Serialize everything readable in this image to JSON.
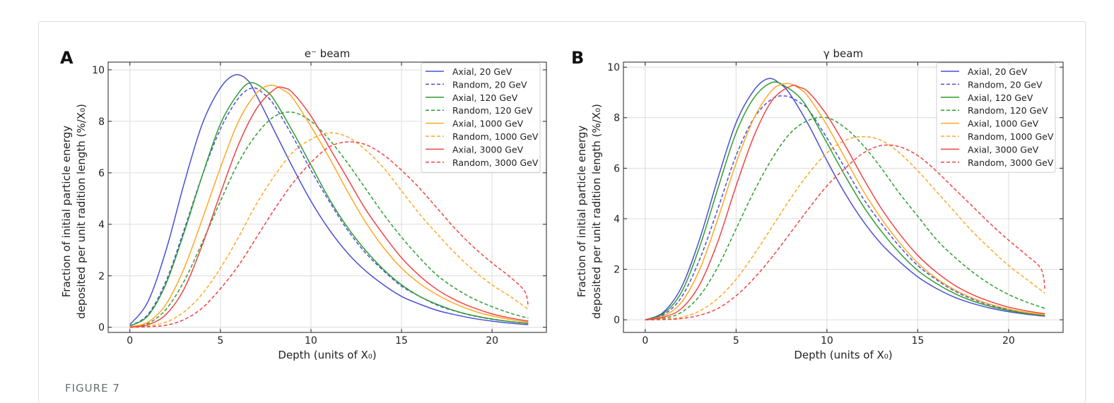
{
  "figure_label": "FIGURE 7",
  "series_names": [
    "Axial, 20 GeV",
    "Random, 20 GeV",
    "Axial, 120 GeV",
    "Random, 120 GeV",
    "Axial, 1000 GeV",
    "Random, 1000 GeV",
    "Axial, 3000 GeV",
    "Random, 3000 GeV"
  ],
  "colors": {
    "20 GeV": "#4a4fd4",
    "120 GeV": "#2e9e2e",
    "1000 GeV": "#ffa726",
    "3000 GeV": "#ef4444"
  },
  "chart_data": [
    {
      "type": "line",
      "panel_letter": "A",
      "title": "e⁻ beam",
      "xlabel": "Depth (units of X₀)",
      "ylabel_line1": "Fraction of initial particle energy",
      "ylabel_line2": "deposited per unit radition length (%/X₀)",
      "xlim": [
        -1.2,
        23.0
      ],
      "ylim": [
        -0.2,
        10.3
      ],
      "xticks": [
        0,
        5,
        10,
        15,
        20
      ],
      "yticks": [
        0,
        2,
        4,
        6,
        8,
        10
      ],
      "grid": true,
      "legend": "top-right",
      "series": [
        {
          "name": "Axial, 20 GeV",
          "color": "#4a4fd4",
          "dash": "solid",
          "x": [
            0,
            1,
            2,
            3,
            4,
            5,
            5.8,
            6.5,
            7,
            8,
            9,
            10,
            11,
            12,
            13,
            14,
            15,
            16,
            17,
            18,
            19,
            20,
            21,
            22
          ],
          "y": [
            0.1,
            1.0,
            3.0,
            5.6,
            7.9,
            9.3,
            9.8,
            9.6,
            9.0,
            7.6,
            6.2,
            4.9,
            3.8,
            2.9,
            2.2,
            1.65,
            1.2,
            0.9,
            0.65,
            0.48,
            0.34,
            0.24,
            0.16,
            0.1
          ]
        },
        {
          "name": "Random, 20 GeV",
          "color": "#4a4fd4",
          "dash": "dashed",
          "x": [
            0,
            1,
            2,
            3,
            4,
            5,
            6,
            6.8,
            7.5,
            8,
            9,
            10,
            11,
            12,
            13,
            14,
            15,
            16,
            17,
            18,
            19,
            20,
            21,
            22
          ],
          "y": [
            0.05,
            0.5,
            1.8,
            3.8,
            5.9,
            7.7,
            8.9,
            9.3,
            9.0,
            8.6,
            7.4,
            6.1,
            4.9,
            3.8,
            2.9,
            2.2,
            1.6,
            1.2,
            0.85,
            0.62,
            0.44,
            0.31,
            0.22,
            0.15
          ]
        },
        {
          "name": "Axial, 120 GeV",
          "color": "#2e9e2e",
          "dash": "solid",
          "x": [
            0,
            1,
            2,
            3,
            4,
            5,
            6,
            6.7,
            7.5,
            8,
            9,
            10,
            11,
            12,
            13,
            14,
            15,
            16,
            17,
            18,
            19,
            20,
            21,
            22
          ],
          "y": [
            0.05,
            0.45,
            1.7,
            3.7,
            5.9,
            7.9,
            9.1,
            9.5,
            9.2,
            8.8,
            7.6,
            6.3,
            5.0,
            3.9,
            3.0,
            2.25,
            1.65,
            1.2,
            0.88,
            0.63,
            0.45,
            0.32,
            0.22,
            0.15
          ]
        },
        {
          "name": "Random, 120 GeV",
          "color": "#2e9e2e",
          "dash": "dashed",
          "x": [
            0,
            1,
            2,
            3,
            4,
            5,
            6,
            7,
            8,
            9,
            10,
            11,
            12,
            13,
            14,
            15,
            16,
            17,
            18,
            19,
            20,
            21,
            22
          ],
          "y": [
            0.02,
            0.15,
            0.7,
            1.8,
            3.3,
            4.9,
            6.4,
            7.5,
            8.2,
            8.35,
            8.0,
            7.3,
            6.4,
            5.4,
            4.4,
            3.5,
            2.7,
            2.0,
            1.5,
            1.1,
            0.8,
            0.55,
            0.35
          ]
        },
        {
          "name": "Axial, 1000 GeV",
          "color": "#ffa726",
          "dash": "solid",
          "x": [
            0,
            1,
            2,
            3,
            4,
            5,
            6,
            7,
            7.8,
            8.5,
            9,
            10,
            11,
            12,
            13,
            14,
            15,
            16,
            17,
            18,
            19,
            20,
            21,
            22
          ],
          "y": [
            0.02,
            0.2,
            0.9,
            2.3,
            4.2,
            6.2,
            8.0,
            9.1,
            9.4,
            9.2,
            8.9,
            7.8,
            6.6,
            5.3,
            4.1,
            3.1,
            2.3,
            1.7,
            1.25,
            0.9,
            0.63,
            0.44,
            0.3,
            0.2
          ]
        },
        {
          "name": "Random, 1000 GeV",
          "color": "#ffa726",
          "dash": "dashed",
          "x": [
            0,
            1,
            2,
            3,
            4,
            5,
            6,
            7,
            8,
            9,
            10,
            11,
            12,
            13,
            14,
            15,
            16,
            17,
            18,
            19,
            20,
            21,
            22
          ],
          "y": [
            0.0,
            0.05,
            0.2,
            0.6,
            1.3,
            2.3,
            3.5,
            4.8,
            5.9,
            6.8,
            7.3,
            7.55,
            7.4,
            6.9,
            6.2,
            5.3,
            4.4,
            3.6,
            2.85,
            2.2,
            1.65,
            1.2,
            0.7
          ]
        },
        {
          "name": "Axial, 3000 GeV",
          "color": "#ef4444",
          "dash": "solid",
          "x": [
            0,
            1,
            2,
            3,
            4,
            5,
            6,
            7,
            8,
            8.5,
            9,
            10,
            11,
            12,
            13,
            14,
            15,
            16,
            17,
            18,
            19,
            20,
            21,
            22
          ],
          "y": [
            0.0,
            0.1,
            0.5,
            1.5,
            3.2,
            5.2,
            7.1,
            8.5,
            9.25,
            9.3,
            9.1,
            8.2,
            7.0,
            5.8,
            4.6,
            3.6,
            2.7,
            2.0,
            1.45,
            1.05,
            0.75,
            0.52,
            0.36,
            0.24
          ]
        },
        {
          "name": "Random, 3000 GeV",
          "color": "#ef4444",
          "dash": "dashed",
          "x": [
            0,
            1,
            2,
            3,
            4,
            5,
            6,
            7,
            8,
            9,
            10,
            11,
            12,
            13,
            14,
            15,
            16,
            17,
            18,
            19,
            20,
            21,
            21.8,
            22
          ],
          "y": [
            0.0,
            0.02,
            0.08,
            0.3,
            0.75,
            1.5,
            2.4,
            3.5,
            4.6,
            5.6,
            6.4,
            7.0,
            7.2,
            7.1,
            6.7,
            6.1,
            5.4,
            4.6,
            3.8,
            3.1,
            2.5,
            1.95,
            1.4,
            0.8
          ]
        }
      ]
    },
    {
      "type": "line",
      "panel_letter": "B",
      "title": "γ beam",
      "xlabel": "Depth (units of X₀)",
      "ylabel_line1": "Fraction of initial particle energy",
      "ylabel_line2": "deposited per unit radition length (%/X₀)",
      "xlim": [
        -1.2,
        23.0
      ],
      "ylim": [
        -0.5,
        10.2
      ],
      "xticks": [
        0,
        5,
        10,
        15,
        20
      ],
      "yticks": [
        0,
        2,
        4,
        6,
        8,
        10
      ],
      "grid": true,
      "legend": "top-right",
      "series": [
        {
          "name": "Axial, 20 GeV",
          "color": "#4a4fd4",
          "dash": "solid",
          "x": [
            0,
            1,
            2,
            3,
            4,
            5,
            6,
            6.8,
            7.5,
            8,
            9,
            10,
            11,
            12,
            13,
            14,
            15,
            16,
            17,
            18,
            19,
            20,
            21,
            22
          ],
          "y": [
            0.0,
            0.3,
            1.3,
            3.2,
            5.6,
            7.8,
            9.1,
            9.55,
            9.3,
            8.9,
            7.7,
            6.3,
            5.0,
            3.9,
            3.0,
            2.3,
            1.7,
            1.25,
            0.9,
            0.65,
            0.46,
            0.32,
            0.22,
            0.14
          ]
        },
        {
          "name": "Random, 20 GeV",
          "color": "#4a4fd4",
          "dash": "dashed",
          "x": [
            0,
            1,
            2,
            3,
            4,
            5,
            6,
            7,
            7.8,
            8.5,
            9,
            10,
            11,
            12,
            13,
            14,
            15,
            16,
            17,
            18,
            19,
            20,
            21,
            22
          ],
          "y": [
            0.0,
            0.2,
            0.9,
            2.4,
            4.4,
            6.5,
            8.0,
            8.75,
            8.85,
            8.6,
            8.3,
            7.2,
            6.0,
            4.8,
            3.8,
            2.9,
            2.15,
            1.6,
            1.15,
            0.82,
            0.58,
            0.4,
            0.27,
            0.18
          ]
        },
        {
          "name": "Axial, 120 GeV",
          "color": "#2e9e2e",
          "dash": "solid",
          "x": [
            0,
            1,
            2,
            3,
            4,
            5,
            6,
            7,
            7.8,
            8.5,
            9,
            10,
            11,
            12,
            13,
            14,
            15,
            16,
            17,
            18,
            19,
            20,
            21,
            22
          ],
          "y": [
            0.0,
            0.25,
            1.1,
            2.9,
            5.2,
            7.4,
            8.8,
            9.4,
            9.2,
            8.8,
            8.3,
            7.0,
            5.7,
            4.5,
            3.5,
            2.65,
            1.95,
            1.45,
            1.05,
            0.75,
            0.53,
            0.37,
            0.25,
            0.17
          ]
        },
        {
          "name": "Random, 120 GeV",
          "color": "#2e9e2e",
          "dash": "dashed",
          "x": [
            0,
            1,
            2,
            3,
            4,
            5,
            6,
            7,
            8,
            9,
            10,
            11,
            12,
            13,
            14,
            15,
            16,
            17,
            18,
            19,
            20,
            21,
            22
          ],
          "y": [
            0.0,
            0.05,
            0.3,
            0.95,
            2.1,
            3.6,
            5.1,
            6.4,
            7.4,
            7.9,
            8.0,
            7.6,
            6.9,
            6.0,
            5.0,
            4.1,
            3.2,
            2.5,
            1.9,
            1.4,
            1.0,
            0.7,
            0.45
          ]
        },
        {
          "name": "Axial, 1000 GeV",
          "color": "#ffa726",
          "dash": "solid",
          "x": [
            0,
            1,
            2,
            3,
            4,
            5,
            6,
            7,
            7.8,
            8.5,
            9,
            10,
            11,
            12,
            13,
            14,
            15,
            16,
            17,
            18,
            19,
            20,
            21,
            22
          ],
          "y": [
            0.0,
            0.15,
            0.7,
            2.0,
            4.0,
            6.2,
            8.0,
            9.1,
            9.35,
            9.15,
            8.8,
            7.7,
            6.4,
            5.1,
            4.0,
            3.05,
            2.25,
            1.65,
            1.2,
            0.86,
            0.61,
            0.43,
            0.29,
            0.2
          ]
        },
        {
          "name": "Random, 1000 GeV",
          "color": "#ffa726",
          "dash": "dashed",
          "x": [
            0,
            1,
            2,
            3,
            4,
            5,
            6,
            7,
            8,
            9,
            10,
            11,
            12,
            13,
            14,
            15,
            16,
            17,
            18,
            19,
            20,
            21,
            22
          ],
          "y": [
            0.0,
            0.02,
            0.1,
            0.35,
            0.85,
            1.6,
            2.6,
            3.7,
            4.8,
            5.8,
            6.6,
            7.1,
            7.25,
            7.1,
            6.6,
            5.9,
            5.1,
            4.3,
            3.5,
            2.8,
            2.15,
            1.6,
            1.05
          ]
        },
        {
          "name": "Axial, 3000 GeV",
          "color": "#ef4444",
          "dash": "solid",
          "x": [
            0,
            1,
            2,
            3,
            4,
            5,
            6,
            7,
            8,
            8.5,
            9,
            10,
            11,
            12,
            13,
            14,
            15,
            16,
            17,
            18,
            19,
            20,
            21,
            22
          ],
          "y": [
            0.0,
            0.1,
            0.45,
            1.4,
            3.1,
            5.3,
            7.3,
            8.7,
            9.25,
            9.2,
            9.0,
            8.1,
            6.9,
            5.6,
            4.4,
            3.4,
            2.55,
            1.9,
            1.38,
            1.0,
            0.72,
            0.5,
            0.35,
            0.24
          ]
        },
        {
          "name": "Random, 3000 GeV",
          "color": "#ef4444",
          "dash": "dashed",
          "x": [
            0,
            1,
            2,
            3,
            4,
            5,
            6,
            7,
            8,
            9,
            10,
            11,
            12,
            13,
            14,
            15,
            16,
            17,
            18,
            19,
            20,
            21,
            21.8,
            22
          ],
          "y": [
            0.0,
            0.01,
            0.05,
            0.18,
            0.45,
            0.95,
            1.65,
            2.5,
            3.45,
            4.4,
            5.3,
            6.0,
            6.6,
            6.9,
            6.85,
            6.5,
            5.9,
            5.2,
            4.5,
            3.8,
            3.15,
            2.55,
            2.0,
            1.2
          ]
        }
      ]
    }
  ]
}
